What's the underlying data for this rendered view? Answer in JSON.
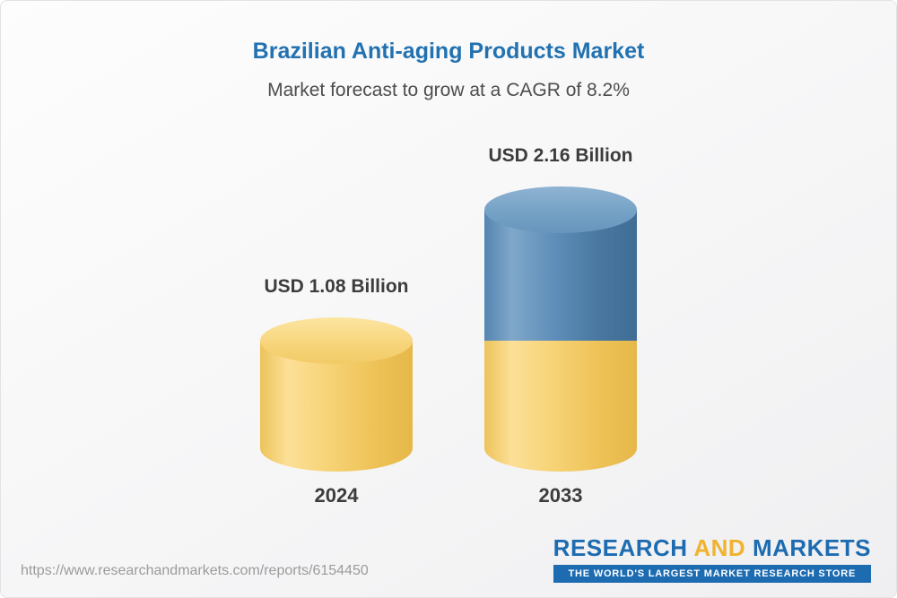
{
  "chart_data": {
    "type": "bar",
    "title": "Brazilian Anti-aging Products Market",
    "subtitle": "Market forecast to grow at a CAGR of 8.2%",
    "categories": [
      "2024",
      "2033"
    ],
    "values": [
      1.08,
      2.16
    ],
    "value_labels": [
      "USD 1.08 Billion",
      "USD 2.16 Billion"
    ],
    "unit": "USD Billion",
    "cagr_percent": 8.2,
    "ylim": [
      0,
      2.4
    ],
    "grid": false,
    "legend": "none",
    "stacking_note": "2033 bar shows 2024 base value in yellow with growth portion in blue on top",
    "series": [
      {
        "name": "Base (2024 level)",
        "values": [
          1.08,
          1.08
        ],
        "color": "#f4cd6a"
      },
      {
        "name": "Growth to 2033",
        "values": [
          0,
          1.08
        ],
        "color": "#5688b4"
      }
    ]
  },
  "colors": {
    "title_blue": "#2272b1",
    "subtitle_gray": "#4d4d4d",
    "bar_yellow": "#f4cd6a",
    "bar_blue": "#5688b4",
    "label_dark": "#3c3c3c",
    "logo_blue": "#1d6cb1",
    "logo_yellow": "#f0b32e",
    "url_gray": "#9b9b9b"
  },
  "footer": {
    "url": "https://www.researchandmarkets.com/reports/6154450",
    "logo": {
      "word1": "RESEARCH",
      "word2": "AND",
      "word3": "MARKETS",
      "tagline": "THE WORLD'S LARGEST MARKET RESEARCH STORE"
    }
  }
}
